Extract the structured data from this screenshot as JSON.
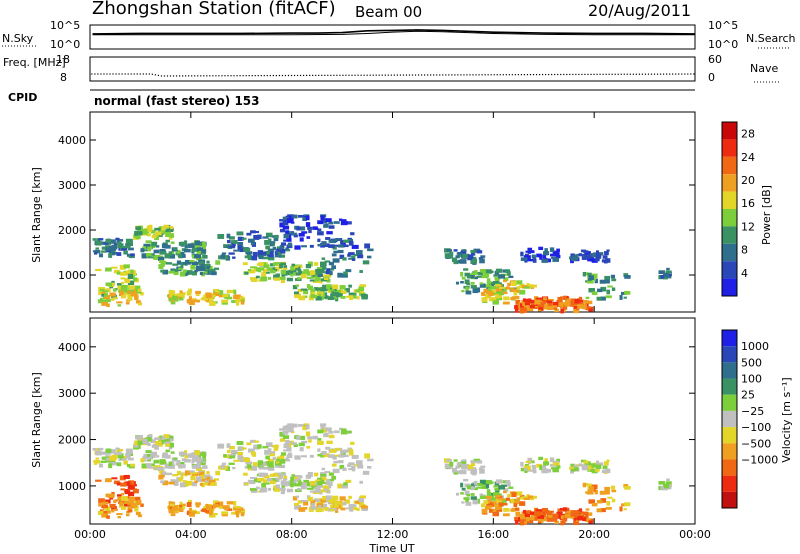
{
  "header": {
    "station": "Zhongshan Station (fitACF)",
    "beam": "Beam 00",
    "date": "20/Aug/2011"
  },
  "colors": {
    "power_scale": [
      "#1e20e6",
      "#2a47b8",
      "#2f6e8c",
      "#3a9264",
      "#7ccf3a",
      "#e3d52a",
      "#f0a020",
      "#f06814",
      "#ee2a10",
      "#c80808"
    ],
    "velocity_scale": [
      "#c01010",
      "#ee2a10",
      "#f06814",
      "#f0a020",
      "#e3d52a",
      "#c0c0c0",
      "#7ccf3a",
      "#3a9264",
      "#2f6e8c",
      "#2a47b8",
      "#1e20e6"
    ],
    "power_curve": "#000000"
  },
  "chart_data": [
    {
      "type": "line",
      "panel": "noise",
      "left_label": "N.Sky",
      "right_label": "N.Search",
      "left_ticks": [
        "10^5",
        "10^0"
      ],
      "right_ticks": [
        "10^5",
        "10^0"
      ],
      "series": [
        {
          "x": [
            0.1,
            2,
            4,
            6,
            8,
            9,
            10,
            10.5,
            11,
            12,
            13,
            14,
            15,
            16,
            18,
            20,
            22,
            24
          ],
          "values": [
            3.2,
            3.3,
            3.3,
            3.3,
            3.4,
            3.4,
            3.5,
            3.7,
            3.9,
            4.0,
            4.1,
            4.0,
            3.8,
            3.6,
            3.4,
            3.3,
            3.3,
            3.2
          ]
        },
        {
          "x": [
            0.1,
            2,
            4,
            6,
            8,
            10,
            11,
            12,
            13,
            14,
            15,
            16,
            18,
            20,
            22,
            24
          ],
          "values": [
            3.0,
            3.0,
            3.0,
            3.0,
            3.0,
            3.1,
            3.3,
            3.6,
            3.8,
            3.7,
            3.5,
            3.3,
            3.1,
            3.0,
            3.0,
            3.0
          ]
        }
      ],
      "ylim": [
        0,
        5
      ]
    },
    {
      "type": "scatter",
      "panel": "frequency",
      "left_label": "Freq. [MHz]",
      "right_label": "Nave",
      "left_ticks": [
        "18",
        "8"
      ],
      "right_ticks": [
        "60",
        "0"
      ],
      "freq_mhz": {
        "x": [
          0,
          2.4,
          2.8,
          24
        ],
        "values": [
          11.0,
          11.0,
          10.1,
          11.0
        ]
      },
      "ylim": [
        8,
        18
      ]
    },
    {
      "type": "heatmap",
      "panel": "power",
      "cpid_label": "CPID",
      "cpid_text": "normal (fast stereo) 153",
      "ylabel": "Slant Range [km]",
      "yticks": [
        1000,
        2000,
        3000,
        4000
      ],
      "ylim": [
        200,
        4600
      ],
      "colorbar_label": "Power [dB]",
      "colorbar_ticks": [
        4,
        8,
        12,
        16,
        20,
        24,
        28
      ],
      "colorbar_range": [
        0,
        30
      ]
    },
    {
      "type": "heatmap",
      "panel": "velocity",
      "ylabel": "Slant Range [km]",
      "yticks": [
        1000,
        2000,
        3000,
        4000
      ],
      "ylim": [
        200,
        4600
      ],
      "colorbar_label": "Velocity [m s⁻¹]",
      "colorbar_ticks": [
        "1000",
        "500",
        "100",
        "25",
        "−25",
        "−100",
        "−500",
        "−1000"
      ]
    }
  ],
  "xaxis": {
    "label": "Time UT",
    "ticks": [
      "00:00",
      "04:00",
      "08:00",
      "12:00",
      "16:00",
      "20:00",
      "00:00"
    ],
    "range_hours": [
      0,
      24
    ]
  }
}
